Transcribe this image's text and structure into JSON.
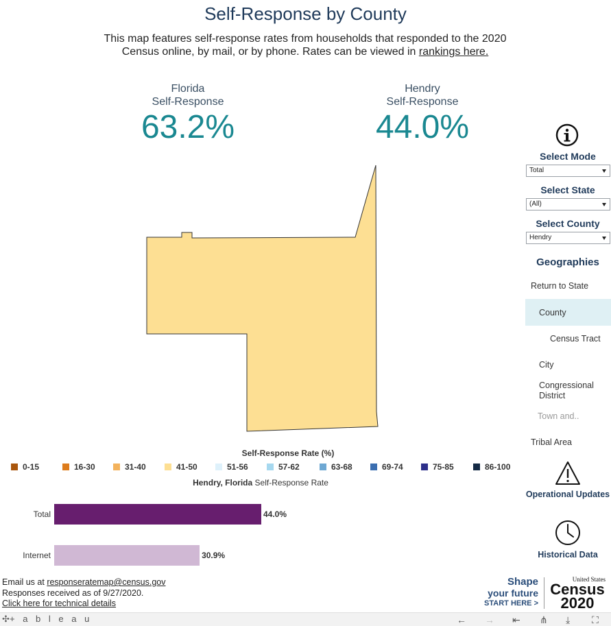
{
  "header": {
    "title": "Self-Response by County",
    "subtitle_text": "This map features self-response rates from households that responded to the 2020 Census online, by mail, or by phone. Rates can be viewed in ",
    "subtitle_link": "rankings here."
  },
  "kpis": {
    "state": {
      "line1": "Florida",
      "line2": "Self-Response",
      "value": "63.2%"
    },
    "county": {
      "line1": "Hendry",
      "line2": "Self-Response",
      "value": "44.0%"
    }
  },
  "map": {
    "county_fill": "#fddf93",
    "county_name": "Hendry"
  },
  "legend": {
    "title": "Self-Response Rate (%)",
    "items": [
      {
        "label": "0-15",
        "color": "#a9560d"
      },
      {
        "label": "16-30",
        "color": "#dd7c1c"
      },
      {
        "label": "31-40",
        "color": "#f3b25c"
      },
      {
        "label": "41-50",
        "color": "#fddf93"
      },
      {
        "label": "51-56",
        "color": "#def1fb"
      },
      {
        "label": "57-62",
        "color": "#a6d8ef"
      },
      {
        "label": "63-68",
        "color": "#6ea8d3"
      },
      {
        "label": "69-74",
        "color": "#3b6eb0"
      },
      {
        "label": "75-85",
        "color": "#2d2f8a"
      },
      {
        "label": "86-100",
        "color": "#142a45"
      }
    ]
  },
  "bar_section": {
    "title_bold": "Hendry, Florida",
    "title_rest": " Self-Response Rate"
  },
  "chart_data": {
    "type": "bar",
    "categories": [
      "Total",
      "Internet"
    ],
    "values": [
      44.0,
      30.9
    ],
    "value_labels": [
      "44.0%",
      "30.9%"
    ],
    "colors": [
      "#671e6e",
      "#d0b8d4"
    ],
    "title": "Hendry, Florida Self-Response Rate",
    "xlabel": "",
    "ylabel": "",
    "xlim": [
      0,
      100
    ],
    "orientation": "horizontal"
  },
  "footer": {
    "email_prefix": "Email us at ",
    "email": "responseratemap@census.gov",
    "received": "Responses received as of 9/27/2020.",
    "tech_link": "Click here for technical details"
  },
  "sidebar": {
    "select_mode": {
      "label": "Select Mode",
      "value": "Total"
    },
    "select_state": {
      "label": "Select State",
      "value": "(All)"
    },
    "select_county": {
      "label": "Select County",
      "value": "Hendry"
    },
    "geographies_label": "Geographies",
    "geographies": [
      {
        "label": "Return to State",
        "state": "normal"
      },
      {
        "label": "County",
        "state": "selected"
      },
      {
        "label": "Census Tract",
        "state": "normal"
      },
      {
        "label": "City",
        "state": "normal"
      },
      {
        "label": "Congressional District",
        "state": "normal"
      },
      {
        "label": "Town and..",
        "state": "disabled"
      },
      {
        "label": "Tribal Area",
        "state": "normal"
      }
    ],
    "operational_updates": "Operational Updates",
    "historical_data": "Historical Data"
  },
  "branding": {
    "shape_line1": "Shape",
    "shape_line2": "your future",
    "shape_line3": "START HERE >",
    "census_small": "United States",
    "census_word": "Census",
    "census_year": "2020"
  },
  "toolbar": {
    "brand": "+ a b l e a u"
  }
}
